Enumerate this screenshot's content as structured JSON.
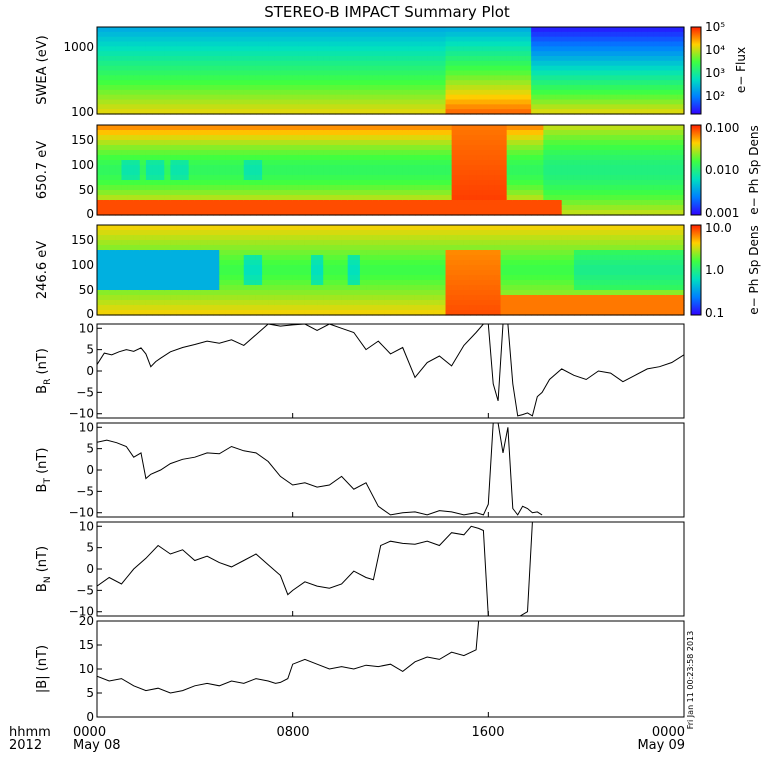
{
  "title": "STEREO-B IMPACT Summary Plot",
  "time_axis": {
    "row_label_top": "hhmm",
    "row_label_bottom": "2012",
    "ticks": [
      {
        "hhmm": "0000",
        "date": "May 08"
      },
      {
        "hhmm": "0800",
        "date": ""
      },
      {
        "hhmm": "1600",
        "date": ""
      },
      {
        "hhmm": "0000",
        "date": "May 09"
      }
    ]
  },
  "stamp": "Fri Jan 11 00:23:58 2013",
  "colorbars": {
    "flux": {
      "label": "e− Flux",
      "ticks": [
        "10⁵",
        "10⁴",
        "10³",
        "10²"
      ]
    },
    "ph650": {
      "label": "e− Ph Sp Dens",
      "ticks": [
        "0.100",
        "0.010",
        "0.001"
      ]
    },
    "ph246": {
      "label": "e− Ph Sp Dens",
      "ticks": [
        "10.0",
        "1.0",
        "0.1"
      ]
    }
  },
  "chart_data": [
    {
      "type": "heatmap",
      "name": "swea",
      "ylabel": "SWEA (eV)",
      "yscale": "log",
      "yticks": [
        "1000",
        "100"
      ],
      "x_hours": [
        0,
        24
      ],
      "color_scale": "log",
      "color_range": [
        "1e1",
        "1e5"
      ]
    },
    {
      "type": "heatmap",
      "name": "pad650",
      "ylabel": "650.7 eV",
      "ylim": [
        0,
        180
      ],
      "yticks": [
        "150",
        "100",
        "50",
        "0"
      ],
      "color_scale": "log",
      "color_range": [
        "0.001",
        "0.100"
      ]
    },
    {
      "type": "heatmap",
      "name": "pad246",
      "ylabel": "246.6 eV",
      "ylim": [
        0,
        180
      ],
      "yticks": [
        "150",
        "100",
        "50",
        "0"
      ],
      "color_scale": "log",
      "color_range": [
        "0.1",
        "10.0"
      ]
    },
    {
      "type": "line",
      "name": "br",
      "ylabel": "B_R (nT)",
      "ylim": [
        -11,
        11
      ],
      "yticks": [
        "10",
        "5",
        "0",
        "−5",
        "−10"
      ],
      "x_hours": [
        0,
        0.3,
        0.6,
        0.9,
        1.2,
        1.5,
        1.8,
        2.0,
        2.2,
        2.4,
        2.6,
        3.0,
        3.5,
        4.0,
        4.5,
        5.0,
        5.5,
        6.0,
        6.5,
        7.0,
        7.5,
        8.0,
        8.5,
        9.0,
        9.5,
        10.0,
        10.5,
        11.0,
        11.5,
        12.0,
        12.5,
        13.0,
        13.5,
        14.0,
        14.5,
        15.0,
        15.5,
        15.8,
        16.0,
        16.2,
        16.4,
        16.6,
        16.8,
        17.0,
        17.2,
        17.4,
        17.6,
        17.8,
        18.0,
        18.2,
        18.5,
        19.0,
        19.5,
        20.0,
        20.5,
        21.0,
        21.5,
        22.0,
        22.5,
        23.0,
        23.5,
        24.0
      ],
      "values": [
        1.5,
        4.2,
        3.8,
        4.5,
        5.0,
        4.6,
        5.4,
        4.0,
        1.0,
        2.2,
        3.0,
        4.5,
        5.5,
        6.2,
        7.0,
        6.5,
        7.3,
        6.0,
        8.5,
        11,
        10.5,
        10.8,
        11,
        9.5,
        11,
        10,
        9.0,
        5.0,
        7.0,
        4.0,
        5.5,
        -1.5,
        2.0,
        3.5,
        1.2,
        6.0,
        9.0,
        11,
        11,
        -3,
        -7,
        11,
        11,
        -3,
        -10.5,
        -10.2,
        -9.8,
        -10.5,
        -6.0,
        -5.0,
        -2.0,
        0.5,
        -1.0,
        -2.0,
        0.0,
        -0.5,
        -2.5,
        -1.0,
        0.5,
        1.0,
        2.0,
        3.8
      ]
    },
    {
      "type": "line",
      "name": "bt",
      "ylabel": "B_T (nT)",
      "ylim": [
        -11,
        11
      ],
      "yticks": [
        "10",
        "5",
        "0",
        "−5",
        "−10"
      ],
      "x_hours": [
        0,
        0.4,
        0.8,
        1.2,
        1.5,
        1.8,
        2.0,
        2.2,
        2.6,
        3.0,
        3.5,
        4.0,
        4.5,
        5.0,
        5.5,
        6.0,
        6.5,
        7.0,
        7.5,
        8.0,
        8.5,
        9.0,
        9.5,
        10.0,
        10.5,
        11.0,
        11.5,
        12.0,
        12.5,
        13.0,
        13.5,
        14.0,
        14.5,
        15.0,
        15.5,
        15.8,
        16.0,
        16.2,
        16.4,
        16.6,
        16.8,
        17.0,
        17.2,
        17.4,
        17.6,
        17.8,
        18.0,
        18.2
      ],
      "values": [
        6.5,
        7.0,
        6.4,
        5.5,
        3.0,
        4.0,
        -2.0,
        -1.0,
        0.0,
        1.5,
        2.5,
        3.0,
        4.0,
        3.8,
        5.5,
        4.5,
        4.0,
        2.0,
        -1.5,
        -3.5,
        -3.0,
        -4.0,
        -3.5,
        -1.5,
        -4.5,
        -3.0,
        -8.5,
        -10.5,
        -10.0,
        -9.8,
        -10.5,
        -9.5,
        -9.8,
        -10.5,
        -10,
        -10.5,
        -8,
        11,
        11,
        4,
        10,
        -9,
        -10.5,
        -8.5,
        -9.0,
        -10.0,
        -9.8,
        -10.5
      ]
    },
    {
      "type": "line",
      "name": "bn",
      "ylabel": "B_N (nT)",
      "ylim": [
        -11,
        11
      ],
      "yticks": [
        "10",
        "5",
        "0",
        "−5",
        "−10"
      ],
      "x_hours": [
        0,
        0.5,
        1.0,
        1.5,
        2.0,
        2.5,
        3.0,
        3.5,
        4.0,
        4.5,
        5.0,
        5.5,
        6.0,
        6.5,
        7.0,
        7.5,
        7.8,
        8.0,
        8.5,
        9.0,
        9.5,
        10.0,
        10.5,
        11.0,
        11.3,
        11.6,
        12.0,
        12.5,
        13.0,
        13.5,
        14.0,
        14.5,
        15.0,
        15.3,
        15.6,
        15.8,
        16.0,
        16.5,
        17.0,
        17.3,
        17.6,
        17.8,
        18.0
      ],
      "values": [
        -4.0,
        -2.0,
        -3.5,
        0.0,
        2.5,
        5.5,
        3.5,
        4.5,
        2.0,
        3.0,
        1.5,
        0.5,
        2.0,
        3.5,
        1.0,
        -1.5,
        -6.0,
        -5.0,
        -3.0,
        -4.0,
        -4.5,
        -3.5,
        -0.5,
        -2.0,
        -2.5,
        5.5,
        6.5,
        6.0,
        5.8,
        6.5,
        5.5,
        8.5,
        8.0,
        10.0,
        9.5,
        9.0,
        -11,
        -11,
        -11,
        -11,
        -10,
        11,
        11
      ]
    },
    {
      "type": "line",
      "name": "bmag",
      "ylabel": "|B| (nT)",
      "ylim": [
        0,
        20
      ],
      "yticks": [
        "20",
        "15",
        "10",
        "5",
        "0"
      ],
      "x_hours": [
        0,
        0.5,
        1.0,
        1.5,
        2.0,
        2.5,
        3.0,
        3.5,
        4.0,
        4.5,
        5.0,
        5.5,
        6.0,
        6.5,
        7.0,
        7.3,
        7.5,
        7.8,
        8.0,
        8.5,
        9.0,
        9.5,
        10.0,
        10.5,
        11.0,
        11.5,
        12.0,
        12.5,
        13.0,
        13.5,
        14.0,
        14.5,
        15.0,
        15.5,
        15.6,
        15.8,
        16.0
      ],
      "values": [
        8.5,
        7.5,
        8.0,
        6.5,
        5.5,
        6.0,
        5.0,
        5.5,
        6.5,
        7.0,
        6.5,
        7.5,
        7.0,
        8.0,
        7.5,
        7.0,
        7.2,
        8.0,
        11.0,
        12.0,
        11.0,
        10.0,
        10.5,
        10.0,
        10.8,
        10.5,
        11.0,
        9.5,
        11.5,
        12.5,
        12.0,
        13.5,
        12.8,
        14.0,
        20,
        20,
        20
      ]
    }
  ]
}
